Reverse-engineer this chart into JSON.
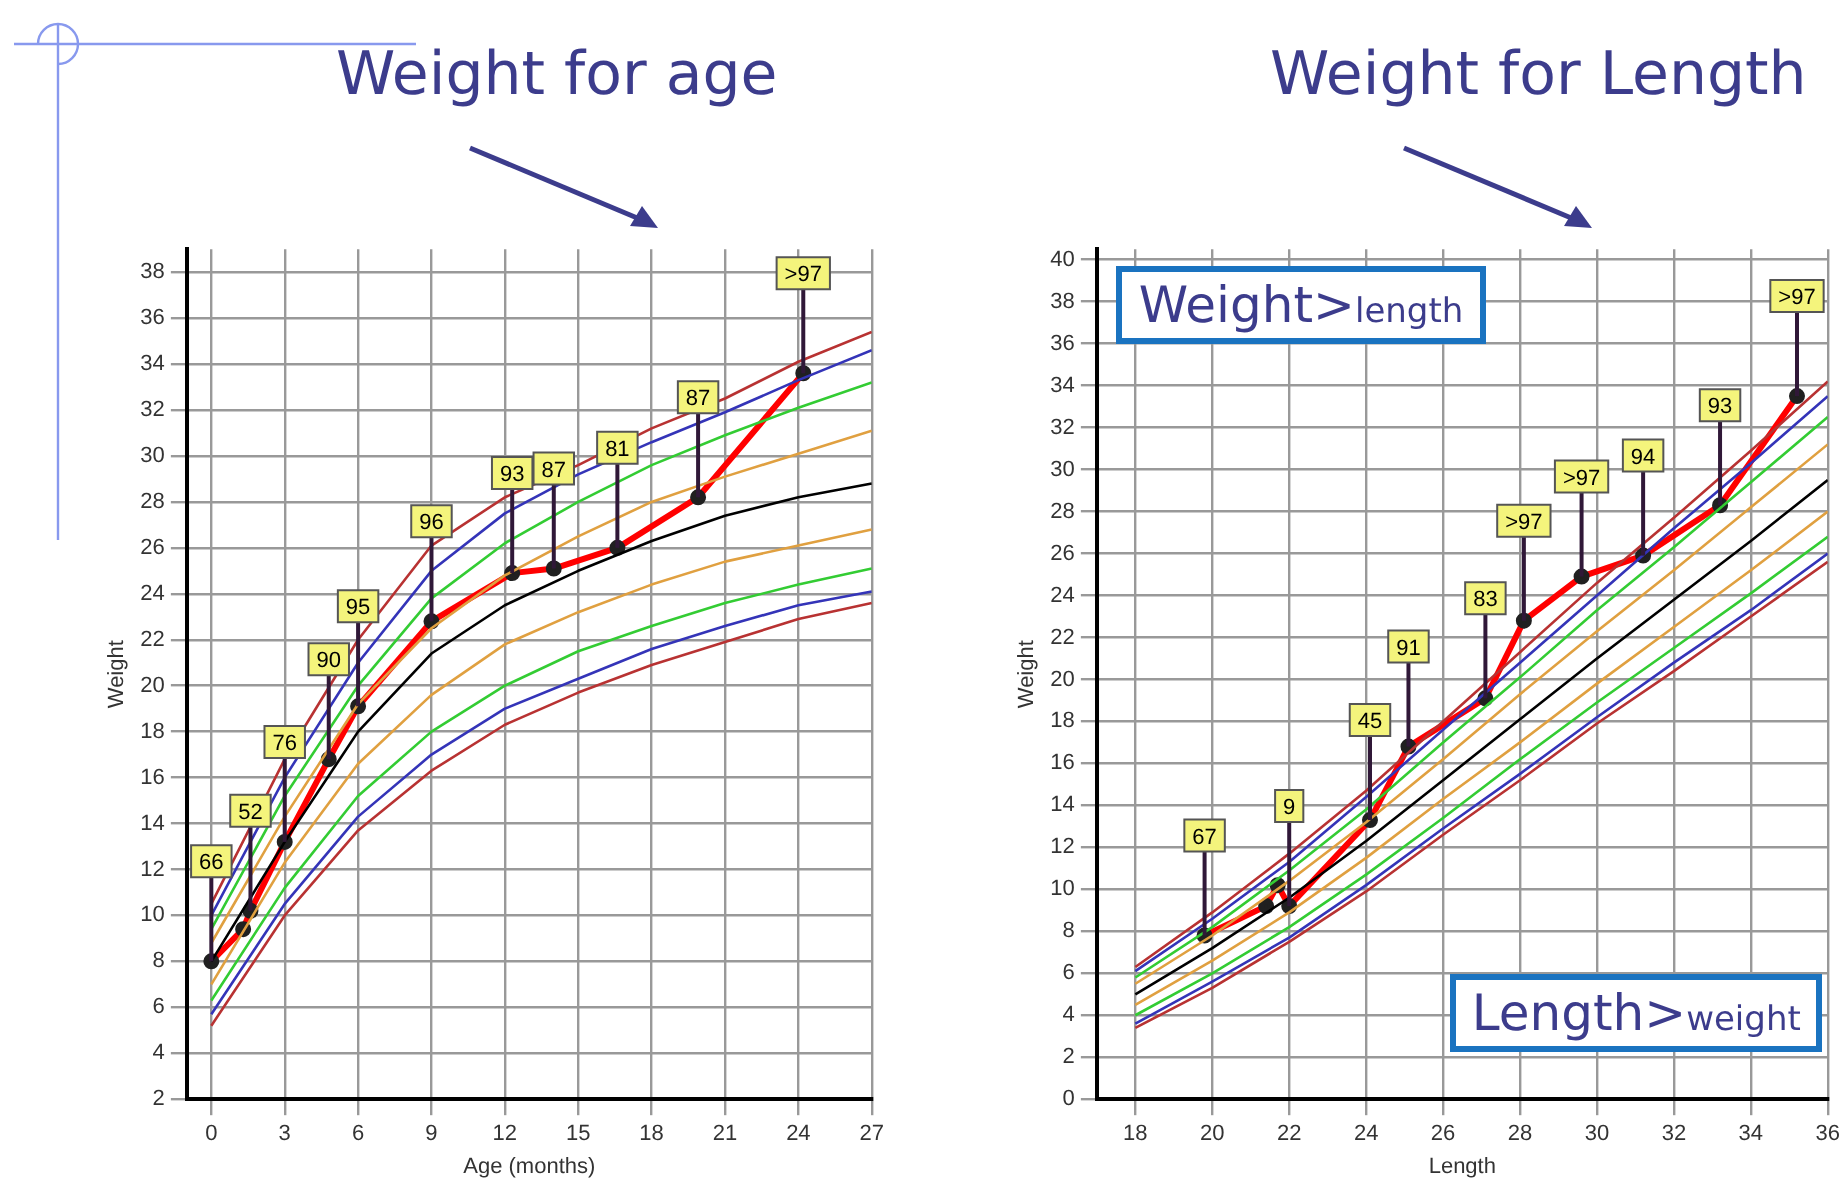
{
  "chart_data": [
    {
      "type": "line",
      "title": "Weight for age",
      "xlabel": "Age (months)",
      "ylabel": "Weight",
      "annotations": [
        {
          "text": "66",
          "x": 0,
          "y": 8
        },
        {
          "text": "52",
          "x": 1.6,
          "y": 10.2
        },
        {
          "text": "76",
          "x": 3,
          "y": 13.2
        },
        {
          "text": "90",
          "x": 4.8,
          "y": 16.8
        },
        {
          "text": "95",
          "x": 6,
          "y": 19.1
        },
        {
          "text": "96",
          "x": 9,
          "y": 22.8
        },
        {
          "text": "93",
          "x": 12.3,
          "y": 24.9
        },
        {
          "text": "87",
          "x": 14,
          "y": 25.1
        },
        {
          "text": "81",
          "x": 16.6,
          "y": 26
        },
        {
          "text": "87",
          "x": 19.9,
          "y": 28.2
        },
        {
          "text": ">97",
          "x": 24.2,
          "y": 33.6
        }
      ],
      "xlim": [
        -1,
        27
      ],
      "xticks": [
        0,
        3,
        6,
        9,
        12,
        15,
        18,
        21,
        24,
        27
      ],
      "ylim": [
        2,
        39
      ],
      "yticks": [
        2,
        4,
        6,
        8,
        10,
        12,
        14,
        16,
        18,
        20,
        22,
        24,
        26,
        28,
        30,
        32,
        34,
        36,
        38
      ],
      "grid": true,
      "legend": false,
      "line_style": "solid",
      "series": [
        {
          "color": "#b83232",
          "x": [
            0,
            3,
            6,
            9,
            12,
            15,
            18,
            21,
            24,
            27
          ],
          "values": [
            10.5,
            16.8,
            22,
            26.1,
            28.2,
            29.6,
            31.2,
            32.5,
            34.1,
            35.4
          ]
        },
        {
          "color": "#3434b8",
          "x": [
            0,
            3,
            6,
            9,
            12,
            15,
            18,
            21,
            24,
            27
          ],
          "values": [
            10,
            16,
            21,
            25,
            27.5,
            29.2,
            30.6,
            31.9,
            33.3,
            34.6
          ]
        },
        {
          "color": "#33cc33",
          "x": [
            0,
            3,
            6,
            9,
            12,
            15,
            18,
            21,
            24,
            27
          ],
          "values": [
            9.4,
            15.2,
            20,
            23.8,
            26.2,
            28,
            29.6,
            30.9,
            32.1,
            33.2
          ]
        },
        {
          "color": "#e0a040",
          "x": [
            0,
            3,
            6,
            9,
            12,
            15,
            18,
            21,
            24,
            27
          ],
          "values": [
            8.8,
            14.3,
            19.2,
            22.5,
            24.8,
            26.5,
            28,
            29.1,
            30.1,
            31.1
          ]
        },
        {
          "color": "#000000",
          "x": [
            0,
            3,
            6,
            9,
            12,
            15,
            18,
            21,
            24,
            27
          ],
          "values": [
            8,
            13.2,
            18,
            21.4,
            23.5,
            25,
            26.3,
            27.4,
            28.2,
            28.8
          ]
        },
        {
          "color": "#e0a040",
          "x": [
            0,
            3,
            6,
            9,
            12,
            15,
            18,
            21,
            24,
            27
          ],
          "values": [
            7,
            12.3,
            16.6,
            19.6,
            21.8,
            23.2,
            24.4,
            25.4,
            26.1,
            26.8
          ]
        },
        {
          "color": "#33cc33",
          "x": [
            0,
            3,
            6,
            9,
            12,
            15,
            18,
            21,
            24,
            27
          ],
          "values": [
            6.3,
            11.2,
            15.2,
            18,
            20,
            21.5,
            22.6,
            23.6,
            24.4,
            25.1
          ]
        },
        {
          "color": "#3434b8",
          "x": [
            0,
            3,
            6,
            9,
            12,
            15,
            18,
            21,
            24,
            27
          ],
          "values": [
            5.7,
            10.5,
            14.3,
            17,
            19,
            20.3,
            21.6,
            22.6,
            23.5,
            24.1
          ]
        },
        {
          "color": "#b83232",
          "x": [
            0,
            3,
            6,
            9,
            12,
            15,
            18,
            21,
            24,
            27
          ],
          "values": [
            5.2,
            10,
            13.7,
            16.3,
            18.3,
            19.7,
            20.9,
            21.9,
            22.9,
            23.6
          ]
        },
        {
          "color": "#ff0000",
          "marker": "circle",
          "x": [
            0,
            1.3,
            1.6,
            3,
            4.8,
            6,
            9,
            12.3,
            14,
            16.6,
            19.9,
            24.2
          ],
          "values": [
            8,
            9.4,
            10.2,
            13.2,
            16.8,
            19.1,
            22.8,
            24.9,
            25.1,
            26,
            28.2,
            33.6
          ]
        }
      ]
    },
    {
      "type": "line",
      "title": "Weight for Length",
      "xlabel": "Length",
      "ylabel": "Weight",
      "xlim": [
        17,
        36
      ],
      "xticks": [
        18,
        20,
        22,
        24,
        26,
        28,
        30,
        32,
        34,
        36
      ],
      "ylim": [
        0,
        40.5
      ],
      "yticks": [
        0,
        2,
        4,
        6,
        8,
        10,
        12,
        14,
        16,
        18,
        20,
        22,
        24,
        26,
        28,
        30,
        32,
        34,
        36,
        38,
        40
      ],
      "grid": true,
      "legend": false,
      "line_style": "solid",
      "annotations": [
        "Weight>$_{length}$",
        "Length>$_{weight}$",
        {
          "text": "67",
          "x": 19.8,
          "y": 7.8
        },
        {
          "text": "9",
          "x": 22,
          "y": 9.2
        },
        {
          "text": "45",
          "x": 24.1,
          "y": 13.3
        },
        {
          "text": "91",
          "x": 25.1,
          "y": 16.8
        },
        {
          "text": "83",
          "x": 27.1,
          "y": 19.1
        },
        {
          "text": ">97",
          "x": 28.1,
          "y": 22.8
        },
        {
          "text": ">97",
          "x": 29.6,
          "y": 24.9
        },
        {
          "text": "94",
          "x": 31.2,
          "y": 25.9
        },
        {
          "text": "93",
          "x": 33.2,
          "y": 28.3
        },
        {
          "text": ">97",
          "x": 35.2,
          "y": 33.5
        }
      ],
      "series": [
        {
          "color": "#b83232",
          "x": [
            18,
            20,
            22,
            24,
            26,
            28,
            30,
            32,
            34,
            36
          ],
          "values": [
            6.3,
            8.9,
            11.7,
            14.7,
            18.0,
            21.3,
            24.6,
            27.7,
            30.9,
            34.2
          ]
        },
        {
          "color": "#3434b8",
          "x": [
            18,
            20,
            22,
            24,
            26,
            28,
            30,
            32,
            34,
            36
          ],
          "values": [
            6.1,
            8.6,
            11.3,
            14.4,
            17.6,
            20.8,
            24.0,
            27.2,
            30.3,
            33.5
          ]
        },
        {
          "color": "#33cc33",
          "x": [
            18,
            20,
            22,
            24,
            26,
            28,
            30,
            32,
            34,
            36
          ],
          "values": [
            5.8,
            8.2,
            10.9,
            13.8,
            17.0,
            20.1,
            23.3,
            26.3,
            29.4,
            32.5
          ]
        },
        {
          "color": "#e0a040",
          "x": [
            18,
            20,
            22,
            24,
            26,
            28,
            30,
            32,
            34,
            36
          ],
          "values": [
            5.5,
            7.8,
            10.4,
            13.2,
            16.2,
            19.3,
            22.3,
            25.2,
            28.2,
            31.2
          ]
        },
        {
          "color": "#000000",
          "x": [
            18,
            20,
            22,
            24,
            26,
            28,
            30,
            32,
            34,
            36
          ],
          "values": [
            5.0,
            7.2,
            9.6,
            12.3,
            15.2,
            18.1,
            21.0,
            23.8,
            26.6,
            29.5
          ]
        },
        {
          "color": "#e0a040",
          "x": [
            18,
            20,
            22,
            24,
            26,
            28,
            30,
            32,
            34,
            36
          ],
          "values": [
            4.5,
            6.6,
            8.9,
            11.5,
            14.3,
            17.0,
            19.8,
            22.5,
            25.2,
            28.0
          ]
        },
        {
          "color": "#33cc33",
          "x": [
            18,
            20,
            22,
            24,
            26,
            28,
            30,
            32,
            34,
            36
          ],
          "values": [
            4.0,
            6.0,
            8.2,
            10.7,
            13.4,
            16.2,
            18.9,
            21.5,
            24.1,
            26.8
          ]
        },
        {
          "color": "#3434b8",
          "x": [
            18,
            20,
            22,
            24,
            26,
            28,
            30,
            32,
            34,
            36
          ],
          "values": [
            3.6,
            5.6,
            7.7,
            10.2,
            12.9,
            15.5,
            18.2,
            20.8,
            23.3,
            26.0
          ]
        },
        {
          "color": "#b83232",
          "x": [
            18,
            20,
            22,
            24,
            26,
            28,
            30,
            32,
            34,
            36
          ],
          "values": [
            3.4,
            5.3,
            7.5,
            9.9,
            12.6,
            15.2,
            17.9,
            20.4,
            23.0,
            25.6
          ]
        },
        {
          "color": "#ff0000",
          "marker": "circle",
          "x": [
            19.8,
            21.4,
            21.7,
            22,
            24.1,
            25.1,
            27.1,
            28.1,
            29.6,
            31.2,
            33.2,
            35.2
          ],
          "values": [
            7.8,
            9.2,
            10.2,
            9.2,
            13.3,
            16.8,
            19.1,
            22.8,
            24.9,
            25.9,
            28.3,
            33.5
          ]
        }
      ]
    }
  ]
}
